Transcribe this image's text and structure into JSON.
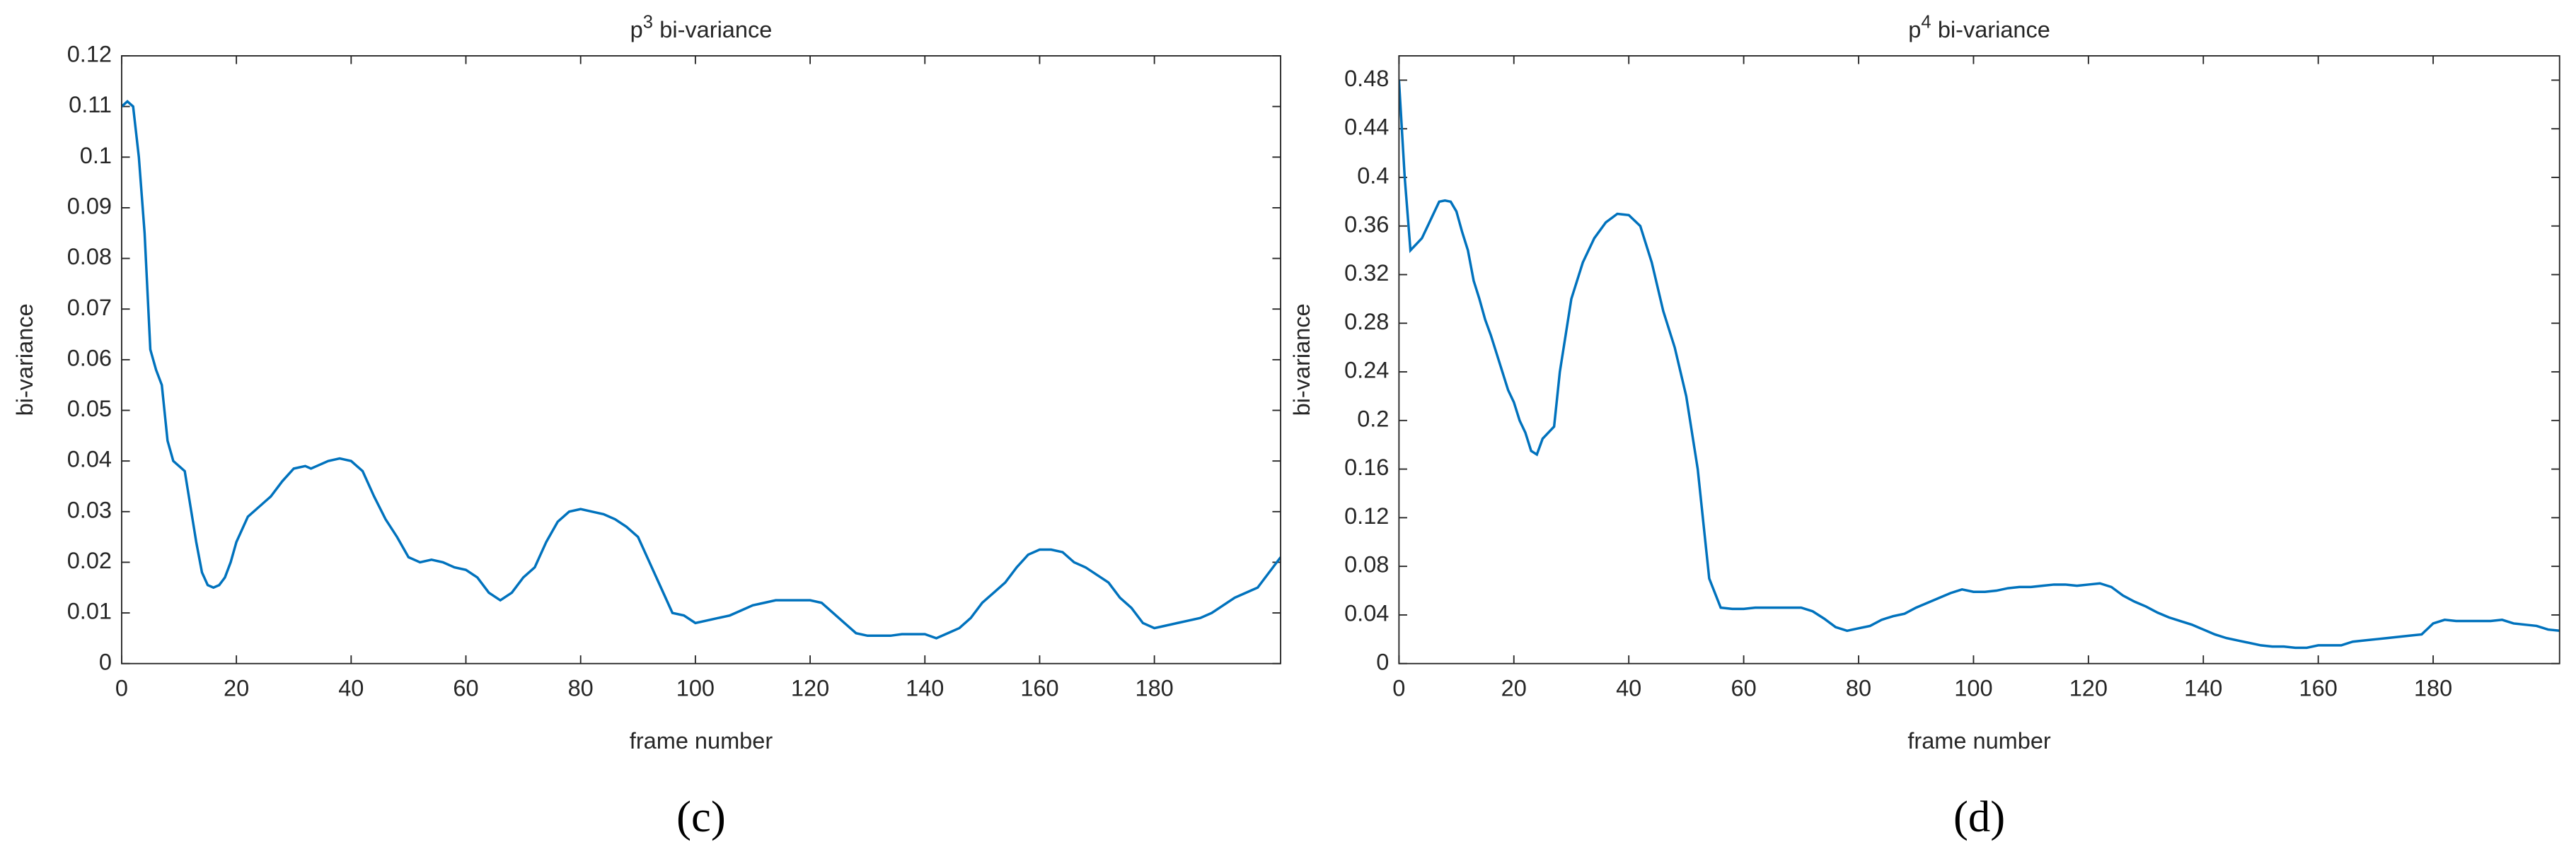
{
  "chart_data": [
    {
      "type": "line",
      "title": {
        "base": "p",
        "exponent": "3",
        "text": "bi-variance"
      },
      "x_label": "frame number",
      "y_label": "bi-variance",
      "caption": "(c)",
      "xlim": [
        0,
        202
      ],
      "ylim": [
        0,
        0.12
      ],
      "xticks": [
        0,
        20,
        40,
        60,
        80,
        100,
        120,
        140,
        160,
        180
      ],
      "yticks": [
        0,
        0.01,
        0.02,
        0.03,
        0.04,
        0.05,
        0.06,
        0.07,
        0.08,
        0.09,
        0.1,
        0.11,
        0.12
      ],
      "series": [
        {
          "color": "#0072bd",
          "x": [
            0,
            1,
            2,
            3,
            4,
            5,
            6,
            7,
            8,
            9,
            10,
            11,
            12,
            13,
            14,
            15,
            16,
            17,
            18,
            19,
            20,
            22,
            24,
            26,
            28,
            30,
            32,
            33,
            34,
            36,
            38,
            40,
            41,
            42,
            44,
            46,
            48,
            50,
            52,
            54,
            56,
            58,
            60,
            62,
            64,
            66,
            68,
            70,
            72,
            74,
            76,
            78,
            80,
            82,
            84,
            86,
            88,
            90,
            92,
            94,
            96,
            98,
            100,
            102,
            104,
            106,
            108,
            110,
            112,
            114,
            116,
            118,
            120,
            122,
            124,
            126,
            128,
            130,
            132,
            134,
            136,
            138,
            140,
            142,
            144,
            146,
            148,
            150,
            152,
            154,
            156,
            158,
            160,
            162,
            164,
            166,
            168,
            170,
            172,
            174,
            176,
            178,
            180,
            182,
            184,
            186,
            188,
            190,
            192,
            194,
            196,
            198,
            200,
            202
          ],
          "values": [
            0.11,
            0.111,
            0.11,
            0.1,
            0.085,
            0.062,
            0.058,
            0.055,
            0.044,
            0.04,
            0.039,
            0.038,
            0.031,
            0.024,
            0.018,
            0.0155,
            0.015,
            0.0155,
            0.017,
            0.02,
            0.024,
            0.029,
            0.031,
            0.033,
            0.036,
            0.0385,
            0.039,
            0.0385,
            0.039,
            0.04,
            0.0405,
            0.04,
            0.039,
            0.038,
            0.033,
            0.0285,
            0.025,
            0.021,
            0.02,
            0.0205,
            0.02,
            0.019,
            0.0185,
            0.017,
            0.014,
            0.0125,
            0.014,
            0.017,
            0.019,
            0.024,
            0.028,
            0.03,
            0.0305,
            0.03,
            0.0295,
            0.0285,
            0.027,
            0.025,
            0.02,
            0.015,
            0.01,
            0.0095,
            0.008,
            0.0085,
            0.009,
            0.0095,
            0.0105,
            0.0115,
            0.012,
            0.0125,
            0.0125,
            0.0125,
            0.0125,
            0.012,
            0.01,
            0.008,
            0.006,
            0.0055,
            0.0055,
            0.0055,
            0.0058,
            0.0058,
            0.0058,
            0.005,
            0.006,
            0.007,
            0.009,
            0.012,
            0.014,
            0.016,
            0.019,
            0.0215,
            0.0225,
            0.0225,
            0.022,
            0.02,
            0.019,
            0.0175,
            0.016,
            0.013,
            0.011,
            0.008,
            0.007,
            0.0075,
            0.008,
            0.0085,
            0.009,
            0.01,
            0.0115,
            0.013,
            0.014,
            0.015,
            0.018,
            0.021
          ]
        }
      ]
    },
    {
      "type": "line",
      "title": {
        "base": "p",
        "exponent": "4",
        "text": "bi-variance"
      },
      "x_label": "frame number",
      "y_label": "bi-variance",
      "caption": "(d)",
      "xlim": [
        0,
        202
      ],
      "ylim": [
        0,
        0.5
      ],
      "xticks": [
        0,
        20,
        40,
        60,
        80,
        100,
        120,
        140,
        160,
        180
      ],
      "yticks": [
        0,
        0.04,
        0.08,
        0.12,
        0.16,
        0.2,
        0.24,
        0.28,
        0.32,
        0.36,
        0.4,
        0.44,
        0.48
      ],
      "series": [
        {
          "color": "#0072bd",
          "x": [
            0,
            1,
            2,
            3,
            4,
            5,
            6,
            7,
            8,
            9,
            10,
            11,
            12,
            13,
            14,
            15,
            16,
            17,
            18,
            19,
            20,
            21,
            22,
            23,
            24,
            25,
            26,
            27,
            28,
            29,
            30,
            32,
            34,
            36,
            38,
            40,
            42,
            44,
            46,
            48,
            50,
            52,
            54,
            56,
            58,
            60,
            62,
            64,
            66,
            68,
            70,
            72,
            74,
            76,
            78,
            80,
            82,
            84,
            86,
            88,
            90,
            92,
            94,
            96,
            98,
            100,
            102,
            104,
            106,
            108,
            110,
            112,
            114,
            116,
            118,
            120,
            122,
            124,
            126,
            128,
            130,
            132,
            134,
            136,
            138,
            140,
            142,
            144,
            146,
            148,
            150,
            152,
            154,
            156,
            158,
            160,
            162,
            164,
            166,
            168,
            170,
            172,
            174,
            176,
            178,
            180,
            182,
            184,
            186,
            188,
            190,
            192,
            194,
            196,
            198,
            200,
            202
          ],
          "values": [
            0.48,
            0.4,
            0.34,
            0.345,
            0.35,
            0.36,
            0.37,
            0.38,
            0.381,
            0.38,
            0.372,
            0.355,
            0.34,
            0.315,
            0.3,
            0.283,
            0.27,
            0.255,
            0.24,
            0.225,
            0.215,
            0.2,
            0.19,
            0.175,
            0.172,
            0.185,
            0.19,
            0.195,
            0.24,
            0.27,
            0.3,
            0.33,
            0.35,
            0.363,
            0.37,
            0.369,
            0.36,
            0.33,
            0.29,
            0.26,
            0.22,
            0.16,
            0.07,
            0.046,
            0.045,
            0.045,
            0.046,
            0.046,
            0.046,
            0.046,
            0.046,
            0.043,
            0.037,
            0.03,
            0.027,
            0.029,
            0.031,
            0.036,
            0.039,
            0.041,
            0.046,
            0.05,
            0.054,
            0.058,
            0.061,
            0.059,
            0.059,
            0.06,
            0.062,
            0.063,
            0.063,
            0.064,
            0.065,
            0.065,
            0.064,
            0.065,
            0.066,
            0.063,
            0.056,
            0.051,
            0.047,
            0.042,
            0.038,
            0.035,
            0.032,
            0.028,
            0.024,
            0.021,
            0.019,
            0.017,
            0.015,
            0.014,
            0.014,
            0.013,
            0.013,
            0.015,
            0.015,
            0.015,
            0.018,
            0.019,
            0.02,
            0.021,
            0.022,
            0.023,
            0.024,
            0.033,
            0.036,
            0.035,
            0.035,
            0.035,
            0.035,
            0.036,
            0.033,
            0.032,
            0.031,
            0.028,
            0.027
          ]
        }
      ]
    }
  ]
}
